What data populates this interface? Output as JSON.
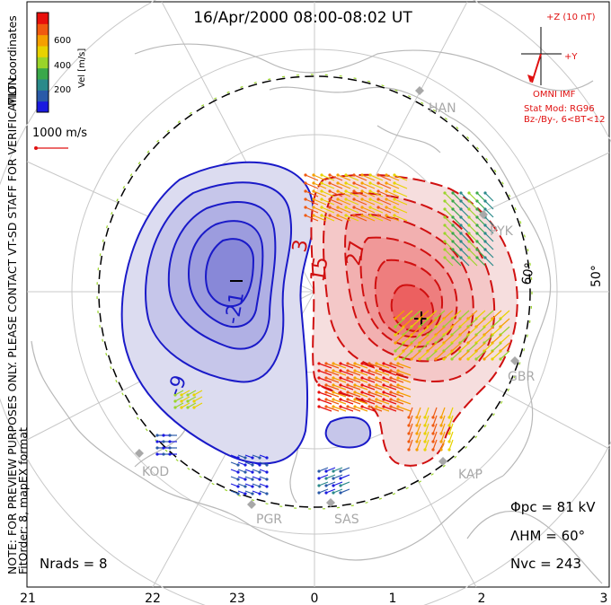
{
  "title": "16/Apr/2000  08:00-08:02  UT",
  "side_note_1": "NOTE: FOR PREVIEW PURPOSES ONLY. PLEASE CONTACT VT-SD STAFF FOR VERIFICATION.",
  "side_note_2": "FitOrder: 8, mapEX format",
  "mlt_label": "MLT coordinates",
  "colorbar": {
    "label": "Vel [m/s]",
    "ticks": [
      "600",
      "400",
      "200"
    ],
    "colors": [
      "#e8100c",
      "#f05a10",
      "#f5a000",
      "#e8d200",
      "#9ad42a",
      "#3aa84a",
      "#2a8a8a",
      "#2a5aa8",
      "#1a1ae0"
    ]
  },
  "scale_vector": "1000 m/s",
  "imf": {
    "z_label": "+Z (10 nT)",
    "y_label": "+Y",
    "omni": "OMNI IMF",
    "model": "Stat Mod: RG96",
    "bin": "Bz-/By-, 6<BT<12",
    "color": "#e01010"
  },
  "stations": [
    "HAN",
    "PYK",
    "GBR",
    "KAP",
    "SAS",
    "PGR",
    "KOD"
  ],
  "lat_labels": [
    "60°",
    "50°"
  ],
  "contour_labels": [
    "-21",
    "-9",
    "3",
    "15",
    "27"
  ],
  "stats": {
    "phi_pc": "Φpc = 81 kV",
    "lambda_hm": "ΛHM = 60°",
    "n_vc": "Nvc = 243",
    "n_rads": "Nrads = 8"
  },
  "mlt_ticks": [
    "21",
    "22",
    "23",
    "0",
    "1",
    "2",
    "3"
  ],
  "colors": {
    "negative": "#1a1ac8",
    "positive": "#d01010",
    "land": "#b8b8b8",
    "grid": "#c8c8c8",
    "hmb": "#3c6e28"
  }
}
